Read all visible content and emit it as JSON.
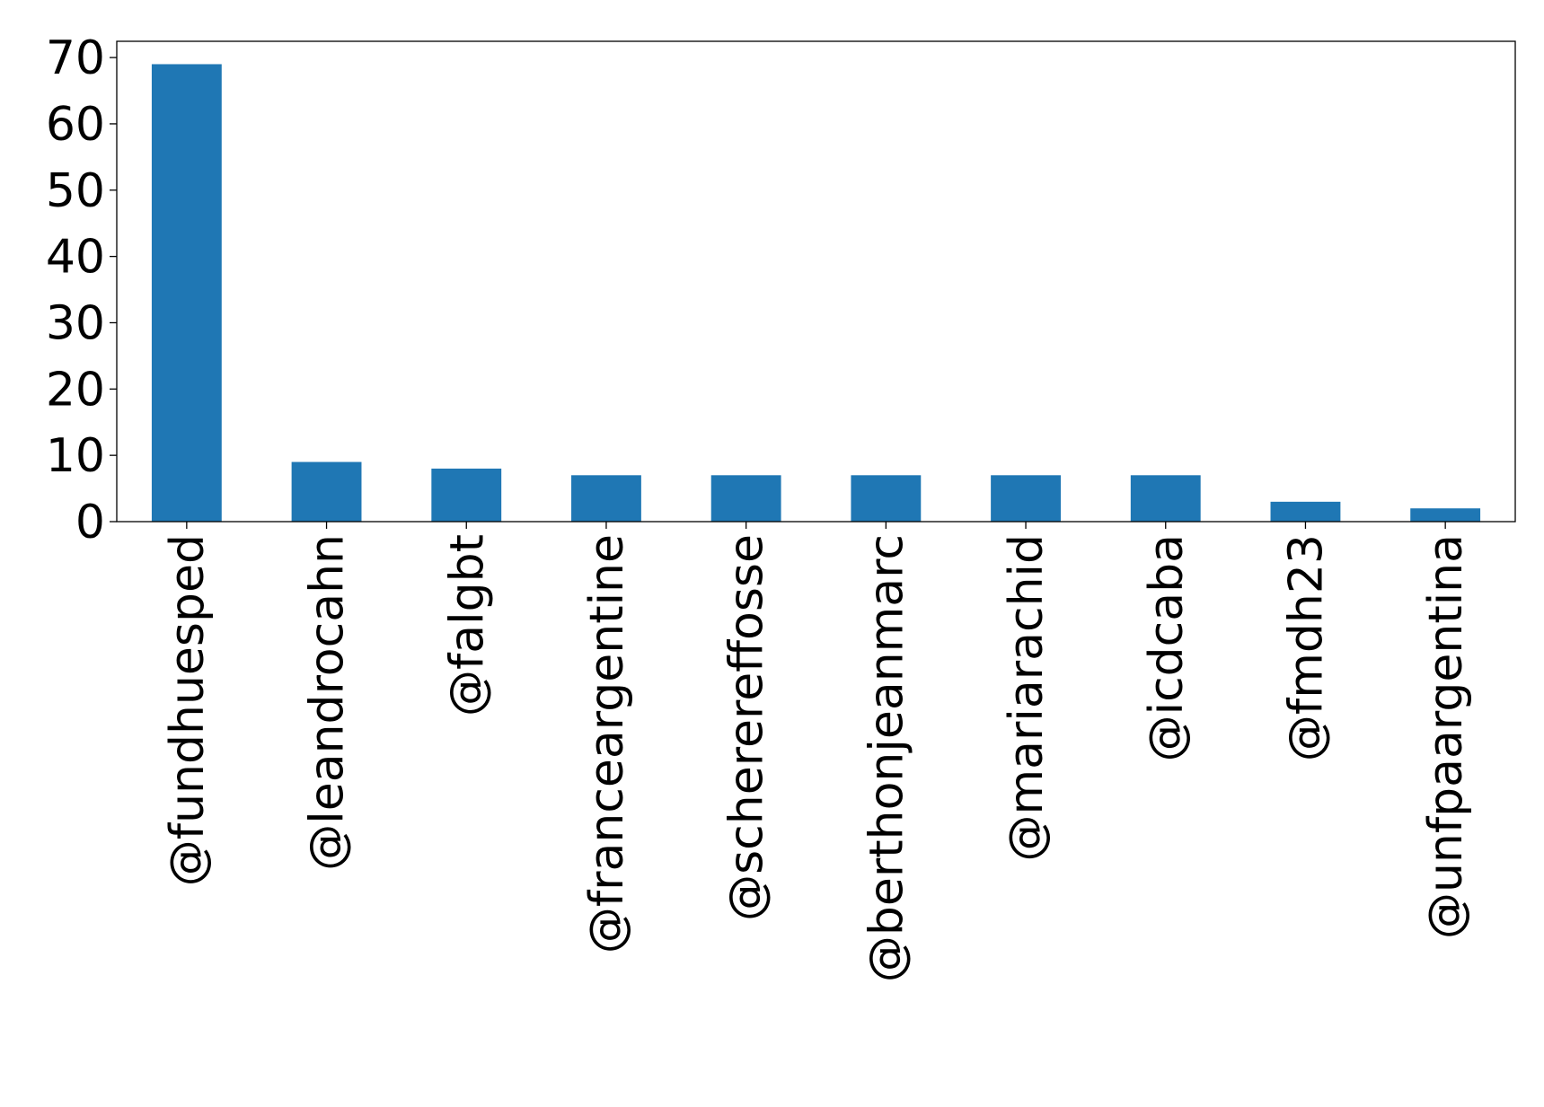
{
  "chart_data": {
    "type": "bar",
    "title": "",
    "xlabel": "",
    "ylabel": "",
    "categories": [
      "@fundhuesped",
      "@leandrocahn",
      "@falgbt",
      "@franceargentine",
      "@scherereffosse",
      "@berthonjeanmarc",
      "@mariarachid",
      "@icdcaba",
      "@fmdh23",
      "@unfpaargentina"
    ],
    "values": [
      69,
      9,
      8,
      7,
      7,
      7,
      7,
      7,
      3,
      2
    ],
    "ylim": [
      0,
      72.45
    ],
    "yticks": [
      0,
      10,
      20,
      30,
      40,
      50,
      60,
      70
    ],
    "bar_color": "#1f77b4",
    "grid": false,
    "legend": "none"
  }
}
